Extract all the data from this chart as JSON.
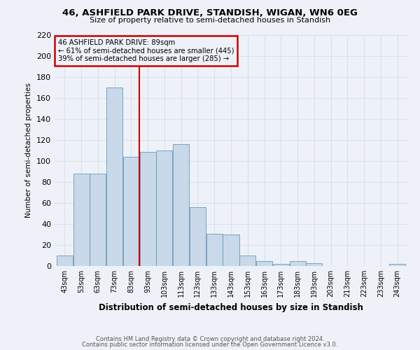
{
  "title": "46, ASHFIELD PARK DRIVE, STANDISH, WIGAN, WN6 0EG",
  "subtitle": "Size of property relative to semi-detached houses in Standish",
  "xlabel": "Distribution of semi-detached houses by size in Standish",
  "ylabel": "Number of semi-detached properties",
  "bar_labels": [
    "43sqm",
    "53sqm",
    "63sqm",
    "73sqm",
    "83sqm",
    "93sqm",
    "103sqm",
    "113sqm",
    "123sqm",
    "133sqm",
    "143sqm",
    "153sqm",
    "163sqm",
    "173sqm",
    "183sqm",
    "193sqm",
    "203sqm",
    "213sqm",
    "223sqm",
    "233sqm",
    "243sqm"
  ],
  "bar_values": [
    10,
    88,
    88,
    170,
    104,
    109,
    110,
    116,
    56,
    31,
    30,
    10,
    5,
    2,
    5,
    3,
    0,
    0,
    0,
    0,
    2
  ],
  "bar_color": "#c9d9ea",
  "bar_edge_color": "#6699bb",
  "vline_x": 5,
  "vline_color": "#cc0000",
  "annotation_title": "46 ASHFIELD PARK DRIVE: 89sqm",
  "annotation_line1": "← 61% of semi-detached houses are smaller (445)",
  "annotation_line2": "39% of semi-detached houses are larger (285) →",
  "annotation_box_color": "#cc0000",
  "ylim": [
    0,
    220
  ],
  "yticks": [
    0,
    20,
    40,
    60,
    80,
    100,
    120,
    140,
    160,
    180,
    200,
    220
  ],
  "bin_width": 1,
  "footer1": "Contains HM Land Registry data © Crown copyright and database right 2024.",
  "footer2": "Contains public sector information licensed under the Open Government Licence v3.0.",
  "background_color": "#eef2f8",
  "grid_color": "#d8e0ec"
}
